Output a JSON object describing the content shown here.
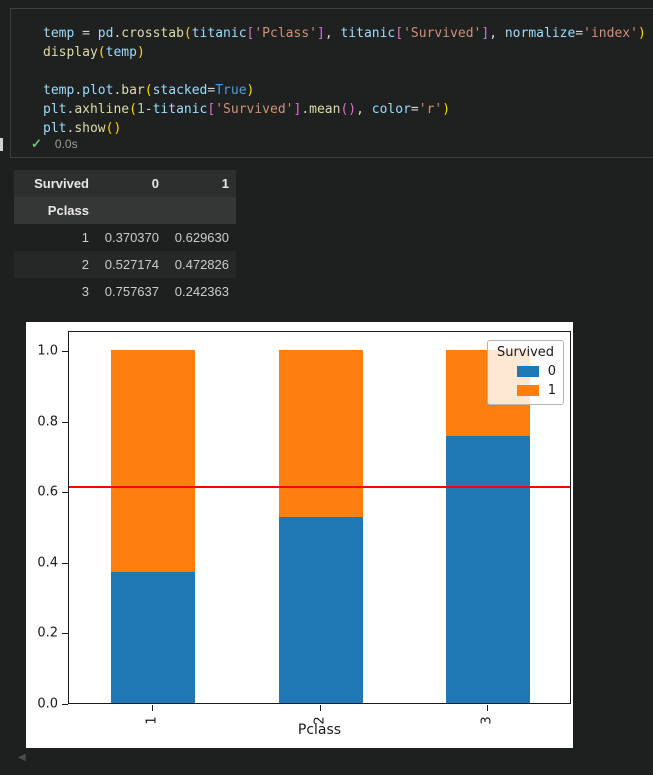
{
  "page": {
    "bg": "#1e1f1f"
  },
  "cell": {
    "status": {
      "check_icon": "✓",
      "check_color": "#6cc479",
      "duration": "0.0s"
    },
    "token_colors": {
      "var": "#9CDCFE",
      "pun": "#D4D4D4",
      "fn": "#DCDCAA",
      "str": "#CE9178",
      "kw": "#569CD6",
      "num": "#B5CEA8",
      "b1": "#FFD700",
      "b2": "#DA70D6"
    },
    "code_lines": [
      [
        {
          "t": "temp",
          "c": "var"
        },
        {
          "t": " = ",
          "c": "pun"
        },
        {
          "t": "pd",
          "c": "var"
        },
        {
          "t": ".",
          "c": "pun"
        },
        {
          "t": "crosstab",
          "c": "fn"
        },
        {
          "t": "(",
          "c": "b1"
        },
        {
          "t": "titanic",
          "c": "var"
        },
        {
          "t": "[",
          "c": "b2"
        },
        {
          "t": "'Pclass'",
          "c": "str"
        },
        {
          "t": "]",
          "c": "b2"
        },
        {
          "t": ", ",
          "c": "pun"
        },
        {
          "t": "titanic",
          "c": "var"
        },
        {
          "t": "[",
          "c": "b2"
        },
        {
          "t": "'Survived'",
          "c": "str"
        },
        {
          "t": "]",
          "c": "b2"
        },
        {
          "t": ", ",
          "c": "pun"
        },
        {
          "t": "normalize",
          "c": "var"
        },
        {
          "t": "=",
          "c": "pun"
        },
        {
          "t": "'index'",
          "c": "str"
        },
        {
          "t": ")",
          "c": "b1"
        }
      ],
      [
        {
          "t": "display",
          "c": "fn"
        },
        {
          "t": "(",
          "c": "b1"
        },
        {
          "t": "temp",
          "c": "var"
        },
        {
          "t": ")",
          "c": "b1"
        }
      ],
      [],
      [
        {
          "t": "temp",
          "c": "var"
        },
        {
          "t": ".",
          "c": "pun"
        },
        {
          "t": "plot",
          "c": "var"
        },
        {
          "t": ".",
          "c": "pun"
        },
        {
          "t": "bar",
          "c": "fn"
        },
        {
          "t": "(",
          "c": "b1"
        },
        {
          "t": "stacked",
          "c": "var"
        },
        {
          "t": "=",
          "c": "pun"
        },
        {
          "t": "True",
          "c": "kw"
        },
        {
          "t": ")",
          "c": "b1"
        }
      ],
      [
        {
          "t": "plt",
          "c": "var"
        },
        {
          "t": ".",
          "c": "pun"
        },
        {
          "t": "axhline",
          "c": "fn"
        },
        {
          "t": "(",
          "c": "b1"
        },
        {
          "t": "1",
          "c": "num"
        },
        {
          "t": "-",
          "c": "pun"
        },
        {
          "t": "titanic",
          "c": "var"
        },
        {
          "t": "[",
          "c": "b2"
        },
        {
          "t": "'Survived'",
          "c": "str"
        },
        {
          "t": "]",
          "c": "b2"
        },
        {
          "t": ".",
          "c": "pun"
        },
        {
          "t": "mean",
          "c": "fn"
        },
        {
          "t": "(",
          "c": "b2"
        },
        {
          "t": ")",
          "c": "b2"
        },
        {
          "t": ", ",
          "c": "pun"
        },
        {
          "t": "color",
          "c": "var"
        },
        {
          "t": "=",
          "c": "pun"
        },
        {
          "t": "'r'",
          "c": "str"
        },
        {
          "t": ")",
          "c": "b1"
        }
      ],
      [
        {
          "t": "plt",
          "c": "var"
        },
        {
          "t": ".",
          "c": "pun"
        },
        {
          "t": "show",
          "c": "fn"
        },
        {
          "t": "(",
          "c": "b1"
        },
        {
          "t": ")",
          "c": "b1"
        }
      ]
    ]
  },
  "table": {
    "columns_name": "Survived",
    "index_name": "Pclass",
    "col_labels": [
      "0",
      "1"
    ],
    "rows": [
      {
        "index": "1",
        "values": [
          "0.370370",
          "0.629630"
        ]
      },
      {
        "index": "2",
        "values": [
          "0.527174",
          "0.472826"
        ]
      },
      {
        "index": "3",
        "values": [
          "0.757637",
          "0.242363"
        ]
      }
    ]
  },
  "chart_data": {
    "type": "bar",
    "stacked": true,
    "categories": [
      "1",
      "2",
      "3"
    ],
    "series": [
      {
        "name": "0",
        "color": "#1f77b4",
        "values": [
          0.37037,
          0.527174,
          0.757637
        ]
      },
      {
        "name": "1",
        "color": "#ff7f0e",
        "values": [
          0.62963,
          0.472826,
          0.242363
        ]
      }
    ],
    "hline": {
      "value": 0.6162,
      "color": "#fe0000"
    },
    "xlabel": "Pclass",
    "legend_title": "Survived",
    "legend_position": "upper right",
    "yticks": [
      "0.0",
      "0.2",
      "0.4",
      "0.6",
      "0.8",
      "1.0"
    ],
    "ylim": [
      0,
      1.057
    ],
    "grid": false,
    "xtick_rotation": 90
  },
  "scroll": {
    "left_arrow": "◀"
  }
}
